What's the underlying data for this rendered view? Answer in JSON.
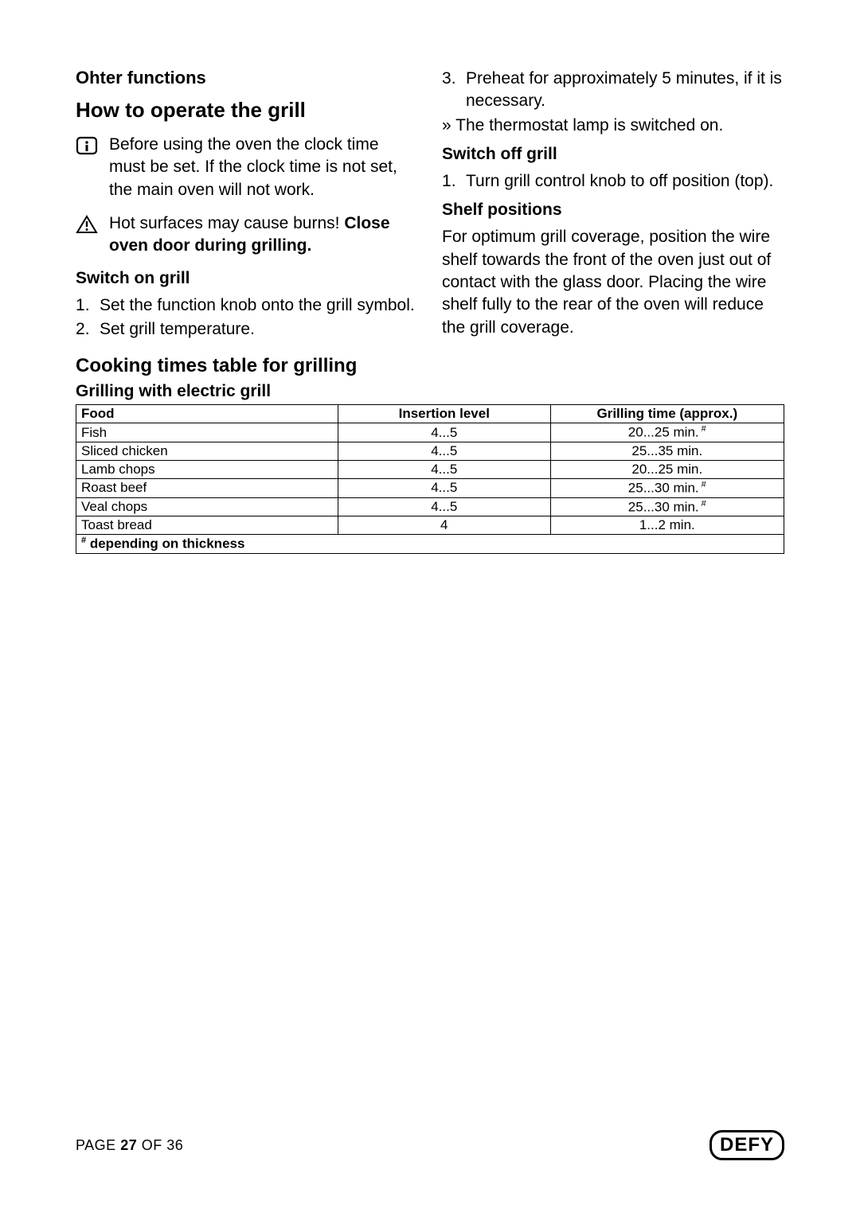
{
  "left": {
    "heading_small": "Ohter functions",
    "heading_main": "How to operate the grill",
    "info_note": "Before using the oven the clock time must be set. If the clock time is not set, the main oven will not work.",
    "warn_note_line1": "Hot surfaces may cause burns!",
    "warn_note_line2": "Close oven door during grilling.",
    "switch_on_title": "Switch on grill",
    "switch_on_steps": [
      "Set the function knob onto the grill symbol.",
      "Set grill temperature."
    ]
  },
  "right": {
    "step3": "Preheat for approximately 5 minutes, if it is necessary.",
    "thermo_line": "» The thermostat lamp is switched on.",
    "switch_off_title": "Switch off grill",
    "switch_off_steps": [
      "Turn grill control knob to off position (top)."
    ],
    "shelf_title": "Shelf positions",
    "shelf_para": "For optimum grill coverage, position the wire shelf towards the front of the oven just out of contact with the glass door. Placing the wire shelf fully to the rear of the oven will reduce the grill coverage."
  },
  "table_section": {
    "title": "Cooking times table for grilling",
    "subtitle": "Grilling with electric grill",
    "columns": [
      "Food",
      "Insertion level",
      "Grilling time (approx.)"
    ],
    "rows": [
      {
        "food": "Fish",
        "level": "4...5",
        "time": "20...25 min.",
        "sup": true
      },
      {
        "food": "Sliced chicken",
        "level": "4...5",
        "time": "25...35 min.",
        "sup": false
      },
      {
        "food": "Lamb chops",
        "level": "4...5",
        "time": "20...25 min.",
        "sup": false
      },
      {
        "food": "Roast beef",
        "level": "4...5",
        "time": "25...30 min.",
        "sup": true
      },
      {
        "food": "Veal chops",
        "level": "4...5",
        "time": "25...30 min.",
        "sup": true
      },
      {
        "food": "Toast bread",
        "level": "4",
        "time": "1...2 min.",
        "sup": false
      }
    ],
    "footnote_sup": "#",
    "footnote": " depending on thickness"
  },
  "footer": {
    "page_prefix": "PAGE ",
    "page_current": "27",
    "page_mid": " OF ",
    "page_total": "36",
    "brand": "DEFY"
  },
  "colors": {
    "text": "#000000",
    "bg": "#ffffff",
    "border": "#000000"
  }
}
